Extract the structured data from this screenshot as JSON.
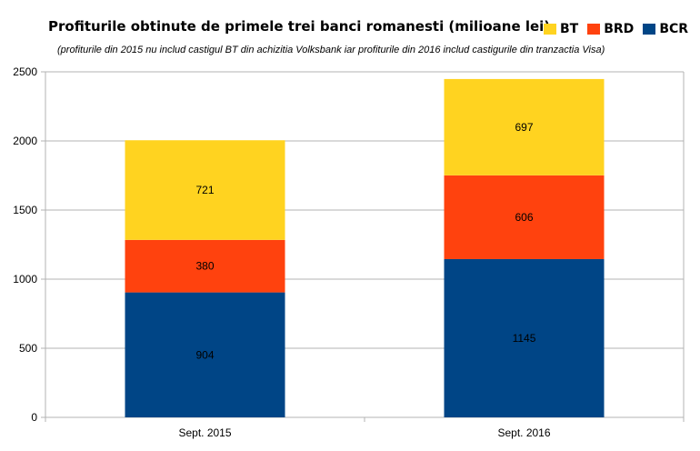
{
  "chart_data": {
    "type": "bar",
    "stacked": true,
    "title": "Profiturile obtinute de primele trei banci romanesti (milioane lei)",
    "subtitle": "(profiturile din 2015 nu includ castigul BT din achizitia Volksbank iar profiturile din 2016 includ castigurile din tranzactia Visa)",
    "categories": [
      "Sept. 2015",
      "Sept. 2016"
    ],
    "series": [
      {
        "name": "BCR",
        "color": "#004586",
        "values": [
          904,
          1145
        ],
        "labels": [
          "904",
          "1145"
        ]
      },
      {
        "name": "BRD",
        "color": "#ff420e",
        "values": [
          380,
          606
        ],
        "labels": [
          "380",
          "606"
        ]
      },
      {
        "name": "BT",
        "color": "#ffd320",
        "values": [
          721,
          697
        ],
        "labels": [
          "721",
          "697"
        ]
      }
    ],
    "legend_order": [
      "BT",
      "BRD",
      "BCR"
    ],
    "ylim": [
      0,
      2500
    ],
    "yticks": [
      0,
      500,
      1000,
      1500,
      2000,
      2500
    ],
    "ytick_labels": [
      "0",
      "500",
      "1000",
      "1500",
      "2000",
      "2500"
    ],
    "grid": true,
    "legend_position": "top-right",
    "gridline_color": "#b3b3b3"
  }
}
